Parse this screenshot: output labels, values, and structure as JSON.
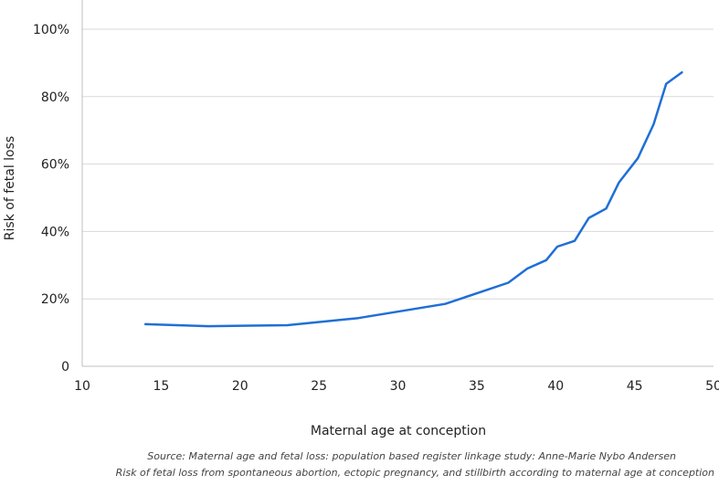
{
  "chart_data": {
    "type": "line",
    "title": "",
    "xlabel": "Maternal age at conception",
    "ylabel": "Risk of fetal loss",
    "xlim": [
      10,
      50
    ],
    "ylim": [
      0,
      100
    ],
    "x_ticks": [
      10,
      15,
      20,
      25,
      30,
      35,
      40,
      45,
      50
    ],
    "x_tick_labels": [
      "10",
      "15",
      "20",
      "25",
      "30",
      "35",
      "40",
      "45",
      "50"
    ],
    "y_ticks": [
      0,
      20,
      40,
      60,
      80,
      100
    ],
    "y_tick_labels": [
      "0",
      "20%",
      "40%",
      "60%",
      "80%",
      "100%"
    ],
    "grid": "horizontal",
    "legend": "none",
    "colors": {
      "line": "#1f6fd6",
      "grid": "#d9d9d9"
    },
    "series": [
      {
        "x": [
          14,
          18,
          23,
          27.5,
          33,
          37,
          38.2,
          39.4,
          40.1,
          41.2,
          42.1,
          43.2,
          44,
          45.2,
          46.2,
          47,
          48
        ],
        "y": [
          12.5,
          11.9,
          12.2,
          14.3,
          18.5,
          24.8,
          29,
          31.5,
          35.5,
          37.2,
          44,
          46.8,
          54.5,
          61.7,
          71.8,
          83.8,
          87.2
        ]
      }
    ],
    "source_lines": [
      "Source: Maternal age and fetal loss: population based register linkage study: Anne-Marie Nybo Andersen",
      "Risk of fetal loss from spontaneous abortion, ectopic pregnancy, and stillbirth according to maternal age at conception"
    ]
  }
}
